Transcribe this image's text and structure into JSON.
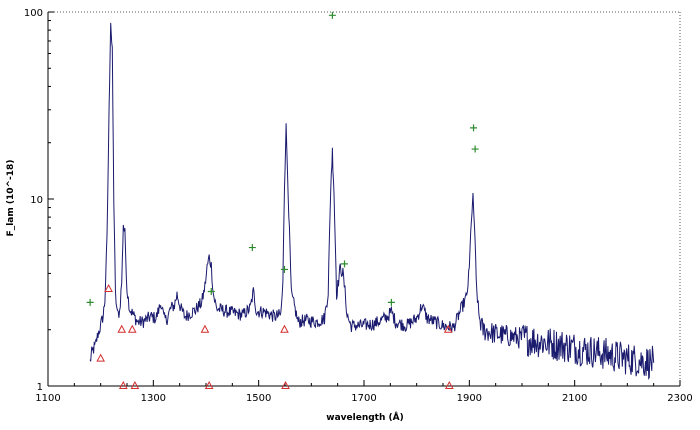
{
  "chart_data": {
    "type": "line",
    "title": "",
    "xlabel": "wavelength (Å)",
    "ylabel": "F_lam (10^-18)",
    "xlim": [
      1100,
      2300
    ],
    "ylim": [
      1,
      100
    ],
    "yscale": "log",
    "x_ticks": [
      1100,
      1300,
      1500,
      1700,
      1900,
      2100,
      2300
    ],
    "x_tick_labels": [
      "1100",
      "1300",
      "1500",
      "1700",
      "1900",
      "2100",
      "2300"
    ],
    "y_ticks": [
      1,
      10,
      100
    ],
    "y_tick_labels": [
      "1",
      "10",
      "100"
    ],
    "grid": false,
    "colors": {
      "spectrum": "#1a1a6e",
      "plus_markers": "#2e8b2e",
      "triangle_markers": "#d32f2f"
    },
    "spectrum_anchors": {
      "name": "",
      "x": [
        1180,
        1183,
        1190,
        1195,
        1200,
        1205,
        1208,
        1212,
        1216,
        1219,
        1222,
        1225,
        1228,
        1232,
        1236,
        1240,
        1243,
        1246,
        1250,
        1255,
        1262,
        1270,
        1280,
        1295,
        1305,
        1315,
        1320,
        1325,
        1333,
        1340,
        1345,
        1352,
        1360,
        1370,
        1380,
        1392,
        1398,
        1402,
        1406,
        1410,
        1414,
        1420,
        1440,
        1470,
        1484,
        1490,
        1496,
        1510,
        1530,
        1542,
        1546,
        1549,
        1552,
        1556,
        1562,
        1575,
        1590,
        1610,
        1625,
        1632,
        1637,
        1640,
        1643,
        1648,
        1655,
        1660,
        1664,
        1668,
        1675,
        1690,
        1720,
        1745,
        1752,
        1760,
        1780,
        1800,
        1810,
        1820,
        1850,
        1870,
        1885,
        1895,
        1900,
        1904,
        1907,
        1910,
        1913,
        1918,
        1925,
        1950,
        2000,
        2050,
        2100,
        2150,
        2200,
        2250
      ],
      "y": [
        1.35,
        1.5,
        1.65,
        1.9,
        2.1,
        2.4,
        2.9,
        6,
        30,
        90,
        60,
        10,
        3.1,
        2.4,
        2.5,
        3.6,
        7.4,
        6.5,
        3.3,
        2.6,
        2.4,
        2.2,
        2.2,
        2.35,
        2.3,
        2.8,
        2.3,
        2.25,
        2.6,
        2.7,
        3.1,
        2.6,
        2.35,
        2.45,
        2.55,
        2.8,
        3.4,
        4.3,
        4.9,
        4.4,
        3.1,
        2.6,
        2.5,
        2.4,
        2.6,
        3.2,
        2.5,
        2.5,
        2.35,
        2.4,
        3.5,
        12,
        24,
        11,
        3.1,
        2.2,
        2.25,
        2.2,
        2.3,
        3.2,
        12,
        18,
        11,
        3.1,
        4.3,
        4.0,
        3.2,
        2.4,
        2.1,
        2.1,
        2.15,
        2.35,
        2.5,
        2.2,
        2.1,
        2.3,
        2.7,
        2.3,
        2.1,
        2.05,
        2.6,
        3.0,
        4.2,
        8,
        10,
        7,
        3.6,
        2.4,
        2.0,
        1.9,
        1.8,
        1.7,
        1.6,
        1.5,
        1.4,
        1.33
      ]
    },
    "plus_markers": {
      "x": [
        1180,
        1410,
        1488,
        1549,
        1640,
        1663,
        1752,
        1908,
        1911
      ],
      "y": [
        2.8,
        3.2,
        5.5,
        4.2,
        96,
        4.5,
        2.8,
        24,
        18.5
      ]
    },
    "triangle_markers": {
      "x": [
        1200,
        1215,
        1240,
        1243,
        1260,
        1265,
        1398,
        1406,
        1549,
        1551,
        1860,
        1862
      ],
      "y": [
        1.4,
        3.3,
        2.0,
        1.0,
        2.0,
        1.0,
        2.0,
        1.0,
        2.0,
        1.0,
        2.0,
        1.0
      ]
    }
  }
}
